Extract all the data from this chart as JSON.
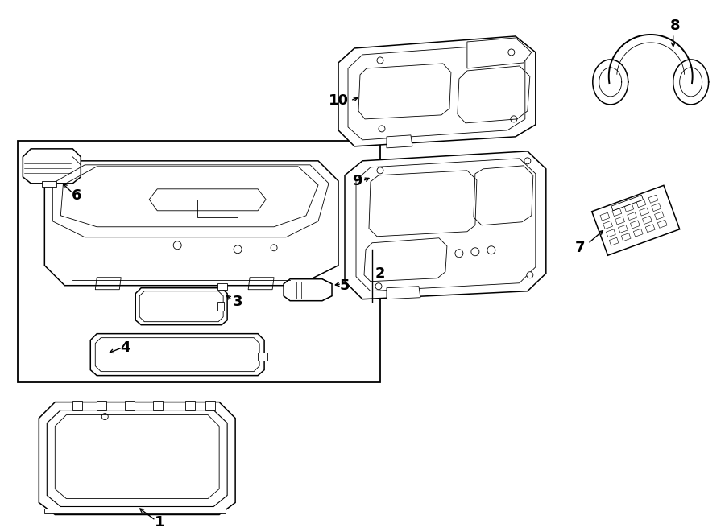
{
  "bg_color": "#ffffff",
  "line_color": "#000000",
  "figsize": [
    9.0,
    6.61
  ],
  "dpi": 100,
  "lw_main": 1.1,
  "lw_detail": 0.6,
  "label_fontsize": 13
}
